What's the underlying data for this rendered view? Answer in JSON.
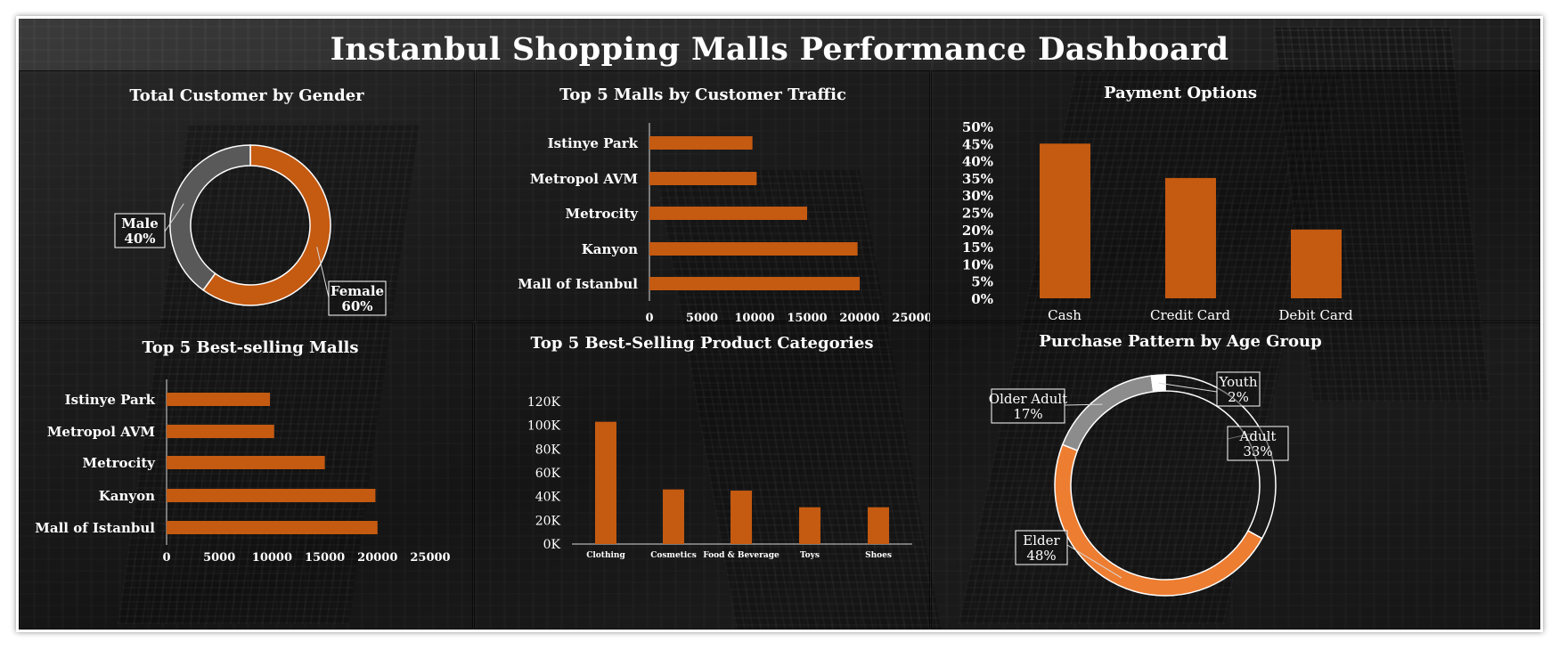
{
  "title": "Instanbul Shopping Malls Performance Dashboard",
  "colors": {
    "accent": "#c55a11",
    "accent_light": "#ed7d31",
    "gray": "#595959",
    "gray_light": "#8c8c8c",
    "white": "#ffffff"
  },
  "chart_data": [
    {
      "id": "gender",
      "type": "pie",
      "title": "Total Customer by Gender",
      "slices": [
        {
          "label": "Female",
          "value": 60,
          "display": "60%"
        },
        {
          "label": "Male",
          "value": 40,
          "display": "40%"
        }
      ]
    },
    {
      "id": "traffic",
      "type": "bar",
      "orientation": "horizontal",
      "title": "Top 5 Malls by Customer Traffic",
      "categories": [
        "Istinye Park",
        "Metropol AVM",
        "Metrocity",
        "Kanyon",
        "Mall of Istanbul"
      ],
      "values": [
        9800,
        10200,
        15000,
        19800,
        20000
      ],
      "xlim": [
        0,
        25000
      ],
      "xticks": [
        "0",
        "5000",
        "10000",
        "15000",
        "20000",
        "25000"
      ]
    },
    {
      "id": "payment",
      "type": "bar",
      "title": "Payment Options",
      "categories": [
        "Cash",
        "Credit Card",
        "Debit Card"
      ],
      "values": [
        45,
        35,
        20
      ],
      "ylim": [
        0,
        50
      ],
      "yticks": [
        "0%",
        "5%",
        "10%",
        "15%",
        "20%",
        "25%",
        "30%",
        "35%",
        "40%",
        "45%",
        "50%"
      ]
    },
    {
      "id": "selling",
      "type": "bar",
      "orientation": "horizontal",
      "title": "Top 5 Best-selling Malls",
      "categories": [
        "Istinye Park",
        "Metropol AVM",
        "Metrocity",
        "Kanyon",
        "Mall of Istanbul"
      ],
      "values": [
        9800,
        10200,
        15000,
        19800,
        20000
      ],
      "xlim": [
        0,
        25000
      ],
      "xticks": [
        "0",
        "5000",
        "10000",
        "15000",
        "20000",
        "25000"
      ]
    },
    {
      "id": "products",
      "type": "bar",
      "title": "Top 5 Best-Selling Product Categories",
      "categories": [
        "Clothing",
        "Cosmetics",
        "Food & Beverage",
        "Toys",
        "Shoes"
      ],
      "values": [
        103000,
        46000,
        45000,
        31000,
        31000
      ],
      "ylim": [
        0,
        120000
      ],
      "yticks": [
        "0K",
        "20K",
        "40K",
        "60K",
        "80K",
        "100K",
        "120K"
      ]
    },
    {
      "id": "age",
      "type": "pie",
      "title": "Purchase  Pattern by Age Group",
      "slices": [
        {
          "label": "Adult",
          "value": 33,
          "display": "33%"
        },
        {
          "label": "Elder",
          "value": 48,
          "display": "48%"
        },
        {
          "label": "Older Adult",
          "value": 17,
          "display": "17%"
        },
        {
          "label": "Youth",
          "value": 2,
          "display": "2%"
        }
      ]
    }
  ]
}
